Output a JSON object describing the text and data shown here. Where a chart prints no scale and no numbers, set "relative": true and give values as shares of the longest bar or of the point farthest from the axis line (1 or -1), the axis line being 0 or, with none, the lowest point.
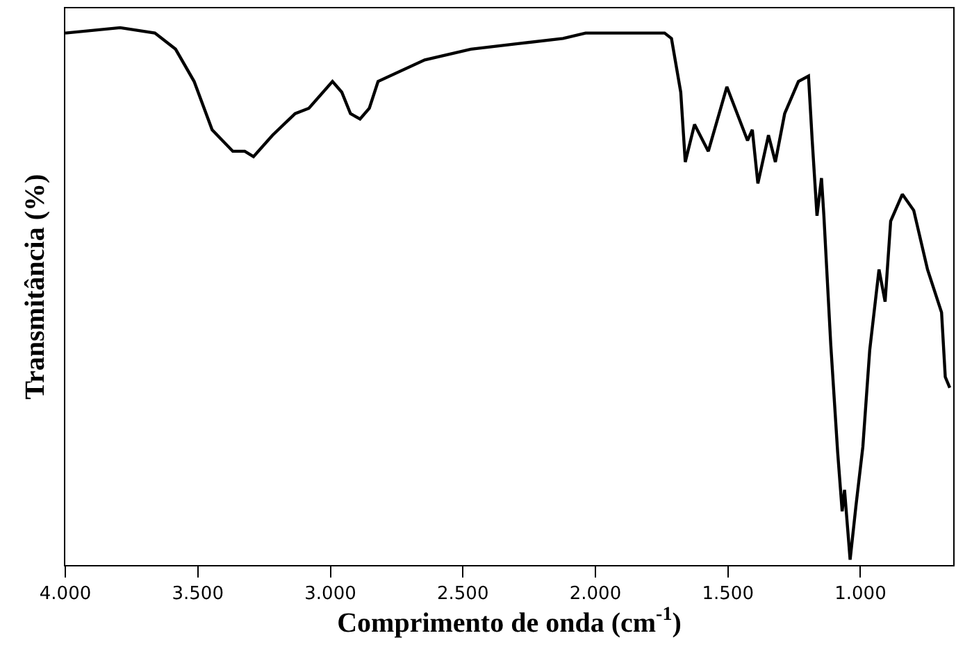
{
  "chart_data": {
    "type": "line",
    "relative": true,
    "xlabel": "Comprimento de onda (cm$^{-1}$)",
    "ylabel": "Transmitância (%)",
    "x": [
      4000,
      3793,
      3662,
      3584,
      3514,
      3446,
      3368,
      3323,
      3290,
      3218,
      3133,
      3081,
      2992,
      2957,
      2924,
      2888,
      2853,
      2820,
      2644,
      2470,
      2298,
      2122,
      2037,
      1861,
      1739,
      1713,
      1678,
      1661,
      1626,
      1574,
      1504,
      1426,
      1408,
      1387,
      1347,
      1321,
      1286,
      1234,
      1196,
      1182,
      1164,
      1147,
      1138,
      1112,
      1086,
      1069,
      1060,
      1039,
      1017,
      991,
      965,
      930,
      907,
      886,
      842,
      799,
      747,
      694,
      680,
      663
    ],
    "series": [
      {
        "color": "#000000",
        "values": [
          0.99,
          1,
          0.99,
          0.96,
          0.9,
          0.81,
          0.77,
          0.77,
          0.76,
          0.8,
          0.84,
          0.85,
          0.9,
          0.88,
          0.84,
          0.83,
          0.85,
          0.9,
          0.94,
          0.96,
          0.97,
          0.98,
          0.99,
          0.99,
          0.99,
          0.98,
          0.88,
          0.75,
          0.82,
          0.77,
          0.89,
          0.79,
          0.81,
          0.71,
          0.8,
          0.75,
          0.84,
          0.9,
          0.91,
          0.79,
          0.65,
          0.72,
          0.65,
          0.41,
          0.21,
          0.1,
          0.14,
          0.01,
          0.11,
          0.22,
          0.4,
          0.55,
          0.49,
          0.64,
          0.69,
          0.66,
          0.55,
          0.47,
          0.35,
          0.33
        ]
      }
    ],
    "xlim": [
      4000,
      650
    ],
    "xticks": [
      {
        "value": 4000,
        "label": "4.000"
      },
      {
        "value": 3500,
        "label": "3.500"
      },
      {
        "value": 3000,
        "label": "3.000"
      },
      {
        "value": 2500,
        "label": "2.500"
      },
      {
        "value": 2000,
        "label": "2.000"
      },
      {
        "value": 1500,
        "label": "1.500"
      },
      {
        "value": 1000,
        "label": "1.000"
      }
    ],
    "grid": false,
    "marker": "none",
    "line_style": "solid"
  }
}
